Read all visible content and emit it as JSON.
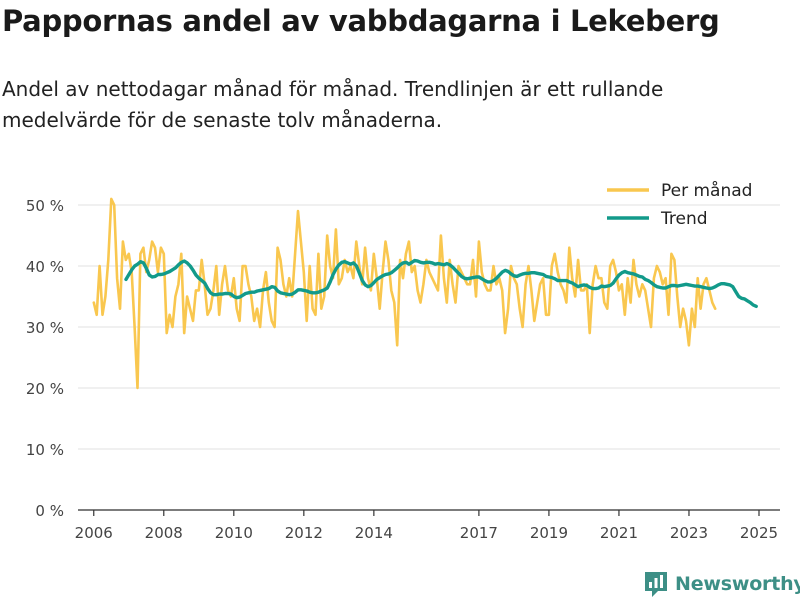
{
  "header": {
    "title": "Pappornas andel av vabbdagarna i Lekeberg",
    "subtitle": "Andel av nettodagar månad för månad. Trendlinjen är ett rullande medelvärde för de senaste tolv månaderna."
  },
  "brand": {
    "name": "Newsworthy",
    "color": "#3d8f86"
  },
  "chart_data": {
    "type": "line",
    "title": "Pappornas andel av vabbdagarna i Lekeberg",
    "xlabel": "",
    "ylabel": "",
    "ylim": [
      0,
      50
    ],
    "xlim": [
      2005.55,
      2025.6
    ],
    "grid": true,
    "legend_position": "top-right",
    "x_ticks": [
      2006,
      2008,
      2010,
      2012,
      2014,
      2017,
      2019,
      2021,
      2023,
      2025
    ],
    "x_tick_labels": [
      "2006",
      "2008",
      "2010",
      "2012",
      "2014",
      "2017",
      "2019",
      "2021",
      "2023",
      "2025"
    ],
    "y_ticks": [
      0,
      10,
      20,
      30,
      40,
      50
    ],
    "y_tick_labels": [
      "0 %",
      "10 %",
      "20 %",
      "30 %",
      "40 %",
      "50 %"
    ],
    "series": [
      {
        "name": "Per månad",
        "color": "#f9c74f",
        "x_start": 2006.0,
        "x_step": 0.08333,
        "values": [
          34,
          32,
          40,
          32,
          35,
          41,
          51,
          50,
          38,
          33,
          44,
          41,
          42,
          39,
          30,
          20,
          42,
          43,
          39,
          41,
          44,
          43,
          39,
          43,
          42,
          29,
          32,
          30,
          35,
          37,
          42,
          29,
          35,
          33,
          31,
          36,
          36,
          41,
          37,
          32,
          33,
          36,
          40,
          32,
          37,
          40,
          36,
          35,
          38,
          33,
          31,
          40,
          40,
          37,
          35,
          31,
          33,
          30,
          36,
          39,
          34,
          31,
          30,
          43,
          41,
          37,
          35,
          38,
          35,
          42,
          49,
          44,
          39,
          31,
          40,
          33,
          32,
          42,
          33,
          35,
          45,
          40,
          38,
          46,
          37,
          38,
          41,
          39,
          40,
          38,
          44,
          40,
          37,
          43,
          38,
          36,
          42,
          38,
          33,
          39,
          44,
          41,
          36,
          34,
          27,
          41,
          38,
          42,
          44,
          39,
          40,
          36,
          34,
          37,
          41,
          39,
          38,
          37,
          36,
          45,
          38,
          34,
          41,
          37,
          34,
          40,
          39,
          38,
          37,
          37,
          41,
          35,
          44,
          39,
          37,
          36,
          36,
          40,
          37,
          38,
          36,
          29,
          33,
          40,
          38,
          37,
          33,
          30,
          37,
          40,
          36,
          31,
          34,
          37,
          38,
          32,
          32,
          40,
          42,
          39,
          37,
          36,
          34,
          43,
          38,
          35,
          41,
          36,
          36,
          37,
          29,
          37,
          40,
          38,
          38,
          34,
          33,
          40,
          41,
          39,
          36,
          37,
          32,
          38,
          34,
          41,
          37,
          35,
          37,
          36,
          33,
          30,
          38,
          40,
          39,
          37,
          38,
          32,
          42,
          41,
          35,
          30,
          33,
          31,
          27,
          33,
          30,
          38,
          33,
          37,
          38,
          36,
          34,
          33
        ]
      },
      {
        "name": "Trend",
        "color": "#129a8a",
        "x_start": 2006.92,
        "x_step": 0.08333,
        "values": [
          37.8,
          38.6,
          39.4,
          40.0,
          40.3,
          40.7,
          40.5,
          39.6,
          38.5,
          38.2,
          38.3,
          38.6,
          38.6,
          38.7,
          38.9,
          39.1,
          39.4,
          39.7,
          40.2,
          40.6,
          40.8,
          40.5,
          40.0,
          39.3,
          38.5,
          38.0,
          37.6,
          37.2,
          36.3,
          35.6,
          35.3,
          35.3,
          35.4,
          35.4,
          35.5,
          35.5,
          35.4,
          35.0,
          34.8,
          34.9,
          35.2,
          35.5,
          35.6,
          35.7,
          35.7,
          35.9,
          36.0,
          36.1,
          36.2,
          36.3,
          36.6,
          36.5,
          35.9,
          35.6,
          35.5,
          35.4,
          35.3,
          35.4,
          35.7,
          36.1,
          36.1,
          36.0,
          35.9,
          35.7,
          35.6,
          35.6,
          35.7,
          35.9,
          36.1,
          36.4,
          37.4,
          38.6,
          39.5,
          40.2,
          40.6,
          40.7,
          40.5,
          40.3,
          40.5,
          40.0,
          38.8,
          37.6,
          36.9,
          36.6,
          36.8,
          37.3,
          37.8,
          38.1,
          38.4,
          38.6,
          38.7,
          38.9,
          39.3,
          39.7,
          40.2,
          40.5,
          40.6,
          40.3,
          40.6,
          40.9,
          40.8,
          40.6,
          40.5,
          40.6,
          40.6,
          40.5,
          40.3,
          40.4,
          40.3,
          40.2,
          40.4,
          40.2,
          39.8,
          39.3,
          38.8,
          38.3,
          38.0,
          37.9,
          38.0,
          38.1,
          38.2,
          38.2,
          37.9,
          37.6,
          37.4,
          37.4,
          37.6,
          38.0,
          38.5,
          39.0,
          39.3,
          39.1,
          38.7,
          38.4,
          38.3,
          38.5,
          38.7,
          38.8,
          38.8,
          38.9,
          38.9,
          38.8,
          38.7,
          38.6,
          38.3,
          38.2,
          38.1,
          37.9,
          37.6,
          37.6,
          37.6,
          37.6,
          37.4,
          37.2,
          36.9,
          36.6,
          36.8,
          36.9,
          36.8,
          36.5,
          36.3,
          36.3,
          36.4,
          36.7,
          36.6,
          36.7,
          36.8,
          37.2,
          37.9,
          38.5,
          38.9,
          39.1,
          38.9,
          38.8,
          38.7,
          38.5,
          38.3,
          38.2,
          37.8,
          37.6,
          37.3,
          36.9,
          36.6,
          36.5,
          36.4,
          36.4,
          36.6,
          36.8,
          36.8,
          36.7,
          36.8,
          36.9,
          37.0,
          36.9,
          36.8,
          36.7,
          36.7,
          36.6,
          36.5,
          36.4,
          36.3,
          36.4,
          36.6,
          36.9,
          37.1,
          37.1,
          37.0,
          36.9,
          36.6,
          35.8,
          35.0,
          34.7,
          34.6,
          34.3,
          34.0,
          33.6,
          33.4
        ]
      }
    ]
  }
}
